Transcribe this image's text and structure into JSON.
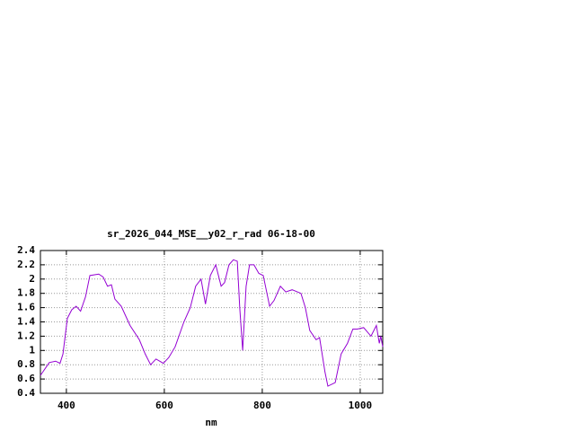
{
  "chart_data": {
    "type": "line",
    "title": "sr_2026_044_MSE__y02_r_rad 06-18-00",
    "x_label": "nm",
    "grid": true,
    "xlim": [
      347,
      1046
    ],
    "xticks": [
      400,
      600,
      800,
      1000
    ],
    "ylim": [
      0.4,
      2.4
    ],
    "yticks": [
      0.4,
      0.6,
      0.8,
      1,
      1.2,
      1.4,
      1.6,
      1.8,
      2,
      2.2,
      2.4
    ],
    "x": [
      347,
      365,
      378,
      387,
      393,
      402,
      411,
      420,
      429,
      439,
      448,
      466,
      475,
      484,
      492,
      499,
      512,
      530,
      549,
      561,
      572,
      583,
      598,
      609,
      622,
      640,
      653,
      664,
      675,
      684,
      694,
      705,
      716,
      723,
      732,
      741,
      749,
      754,
      760,
      767,
      774,
      783,
      793,
      802,
      815,
      824,
      837,
      848,
      861,
      879,
      888,
      897,
      910,
      917,
      928,
      934,
      949,
      961,
      974,
      985,
      994,
      1007,
      1022,
      1033,
      1039,
      1042,
      1046
    ],
    "series": [
      {
        "color": "#9400d3",
        "values": [
          0.65,
          0.83,
          0.85,
          0.82,
          0.95,
          1.45,
          1.57,
          1.62,
          1.55,
          1.75,
          2.05,
          2.07,
          2.03,
          1.9,
          1.92,
          1.72,
          1.62,
          1.35,
          1.15,
          0.95,
          0.8,
          0.88,
          0.82,
          0.9,
          1.05,
          1.4,
          1.6,
          1.9,
          2.0,
          1.65,
          2.05,
          2.2,
          1.9,
          1.95,
          2.2,
          2.27,
          2.25,
          1.6,
          1.0,
          1.9,
          2.2,
          2.2,
          2.08,
          2.05,
          1.62,
          1.7,
          1.9,
          1.82,
          1.85,
          1.8,
          1.6,
          1.28,
          1.15,
          1.18,
          0.7,
          0.5,
          0.55,
          0.95,
          1.1,
          1.3,
          1.3,
          1.32,
          1.2,
          1.35,
          1.1,
          1.2,
          1.05
        ]
      }
    ]
  }
}
